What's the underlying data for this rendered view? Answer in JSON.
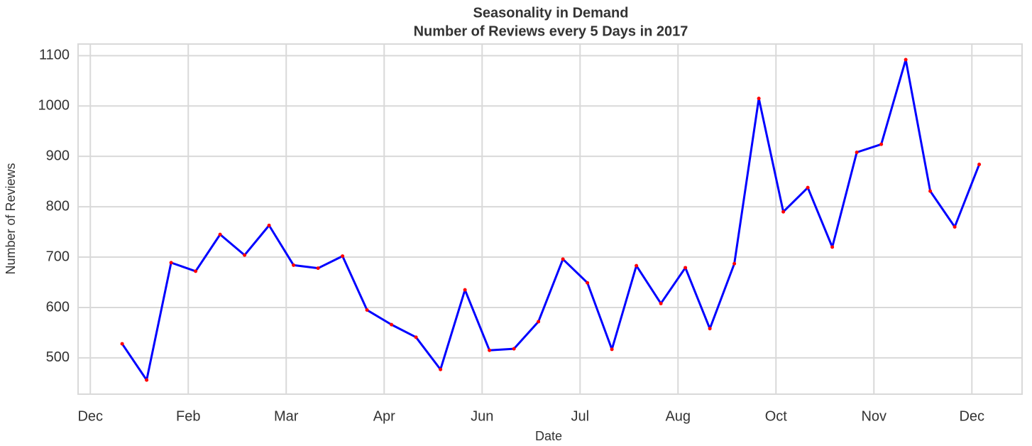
{
  "chart_data": {
    "type": "line",
    "title": "Seasonality in Demand",
    "subtitle": "Number of Reviews every 5 Days in 2017",
    "xlabel": "Date",
    "ylabel": "Number of Reviews",
    "x": [
      0,
      1,
      2,
      3,
      4,
      5,
      6,
      7,
      8,
      9,
      10,
      11,
      12,
      13,
      14,
      15,
      16,
      17,
      18,
      19,
      20,
      21,
      22,
      23,
      24,
      25,
      26,
      27,
      28,
      29,
      30,
      31,
      32,
      33,
      34,
      35
    ],
    "values": [
      528,
      456,
      689,
      672,
      745,
      704,
      763,
      684,
      678,
      702,
      595,
      566,
      541,
      477,
      635,
      515,
      518,
      572,
      696,
      649,
      517,
      683,
      608,
      679,
      558,
      687,
      1015,
      790,
      838,
      720,
      908,
      924,
      1092,
      831,
      760,
      884
    ],
    "color": "#0000ff",
    "marker_color": "#ff0000",
    "xlim": [
      -1.8,
      36.75
    ],
    "ylim": [
      428,
      1123
    ],
    "xticks": [
      {
        "value": -1.3,
        "label": "Dec"
      },
      {
        "value": 2.7,
        "label": "Feb"
      },
      {
        "value": 6.7,
        "label": "Mar"
      },
      {
        "value": 10.7,
        "label": "Apr"
      },
      {
        "value": 14.7,
        "label": "Jun"
      },
      {
        "value": 18.7,
        "label": "Jul"
      },
      {
        "value": 22.7,
        "label": "Aug"
      },
      {
        "value": 26.7,
        "label": "Oct"
      },
      {
        "value": 30.7,
        "label": "Nov"
      },
      {
        "value": 34.7,
        "label": "Dec"
      }
    ],
    "yticks": [
      500,
      600,
      700,
      800,
      900,
      1000,
      1100
    ],
    "grid": true
  }
}
